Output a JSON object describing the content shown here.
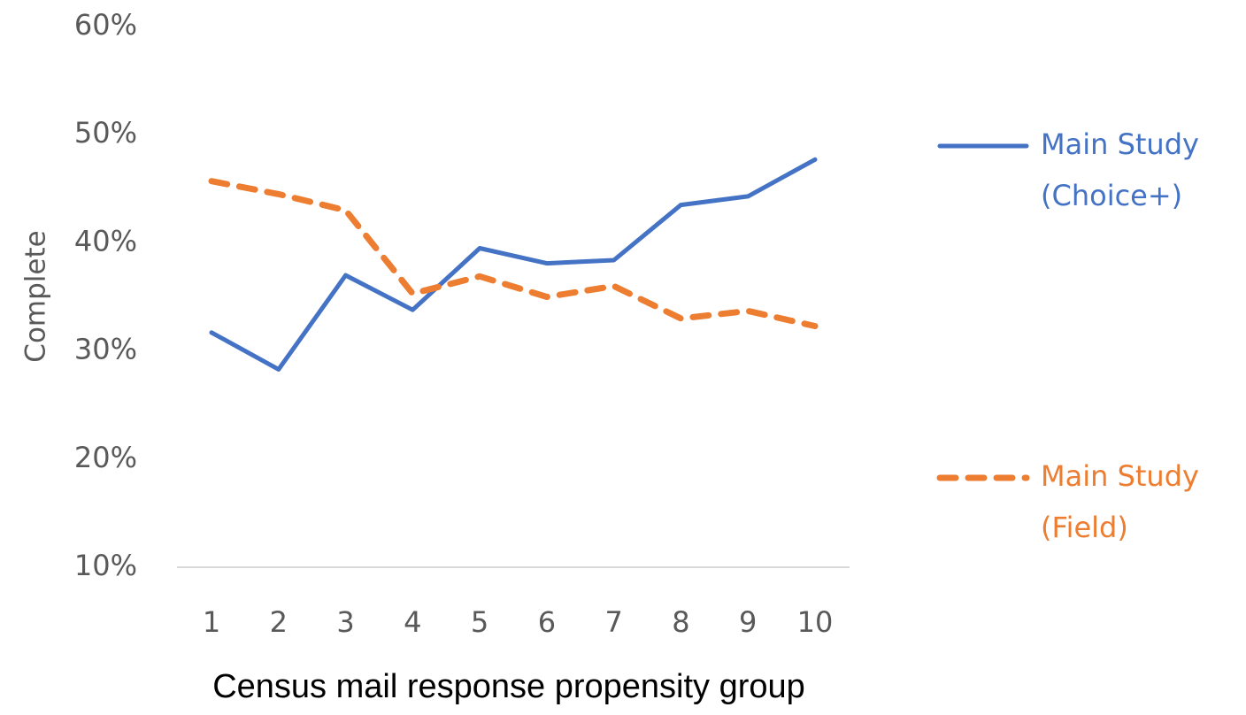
{
  "chart_data": {
    "type": "line",
    "x": [
      1,
      2,
      3,
      4,
      5,
      6,
      7,
      8,
      9,
      10
    ],
    "x_tick_labels": [
      "1",
      "2",
      "3",
      "4",
      "5",
      "6",
      "7",
      "8",
      "9",
      "10"
    ],
    "y_tick_labels": [
      "10%",
      "20%",
      "30%",
      "40%",
      "50%",
      "60%"
    ],
    "ylim": [
      10,
      60
    ],
    "yticks": [
      10,
      20,
      30,
      40,
      50,
      60
    ],
    "xlabel": "Census mail response propensity group",
    "ylabel": "Complete",
    "legend_position": "right",
    "grid": false,
    "series": [
      {
        "name": "Main Study (Choice+)",
        "legend_lines": [
          "Main Study",
          "(Choice+)"
        ],
        "color": "#4472C4",
        "style": "solid",
        "values": [
          31.7,
          28.3,
          37.0,
          33.8,
          39.5,
          38.1,
          38.4,
          43.5,
          44.3,
          47.7
        ]
      },
      {
        "name": "Main Study (Field)",
        "legend_lines": [
          "Main Study",
          "(Field)"
        ],
        "color": "#ED7D31",
        "style": "dashed",
        "values": [
          45.7,
          44.5,
          43.0,
          35.3,
          36.9,
          35.0,
          36.0,
          33.0,
          33.7,
          32.3
        ]
      }
    ]
  }
}
